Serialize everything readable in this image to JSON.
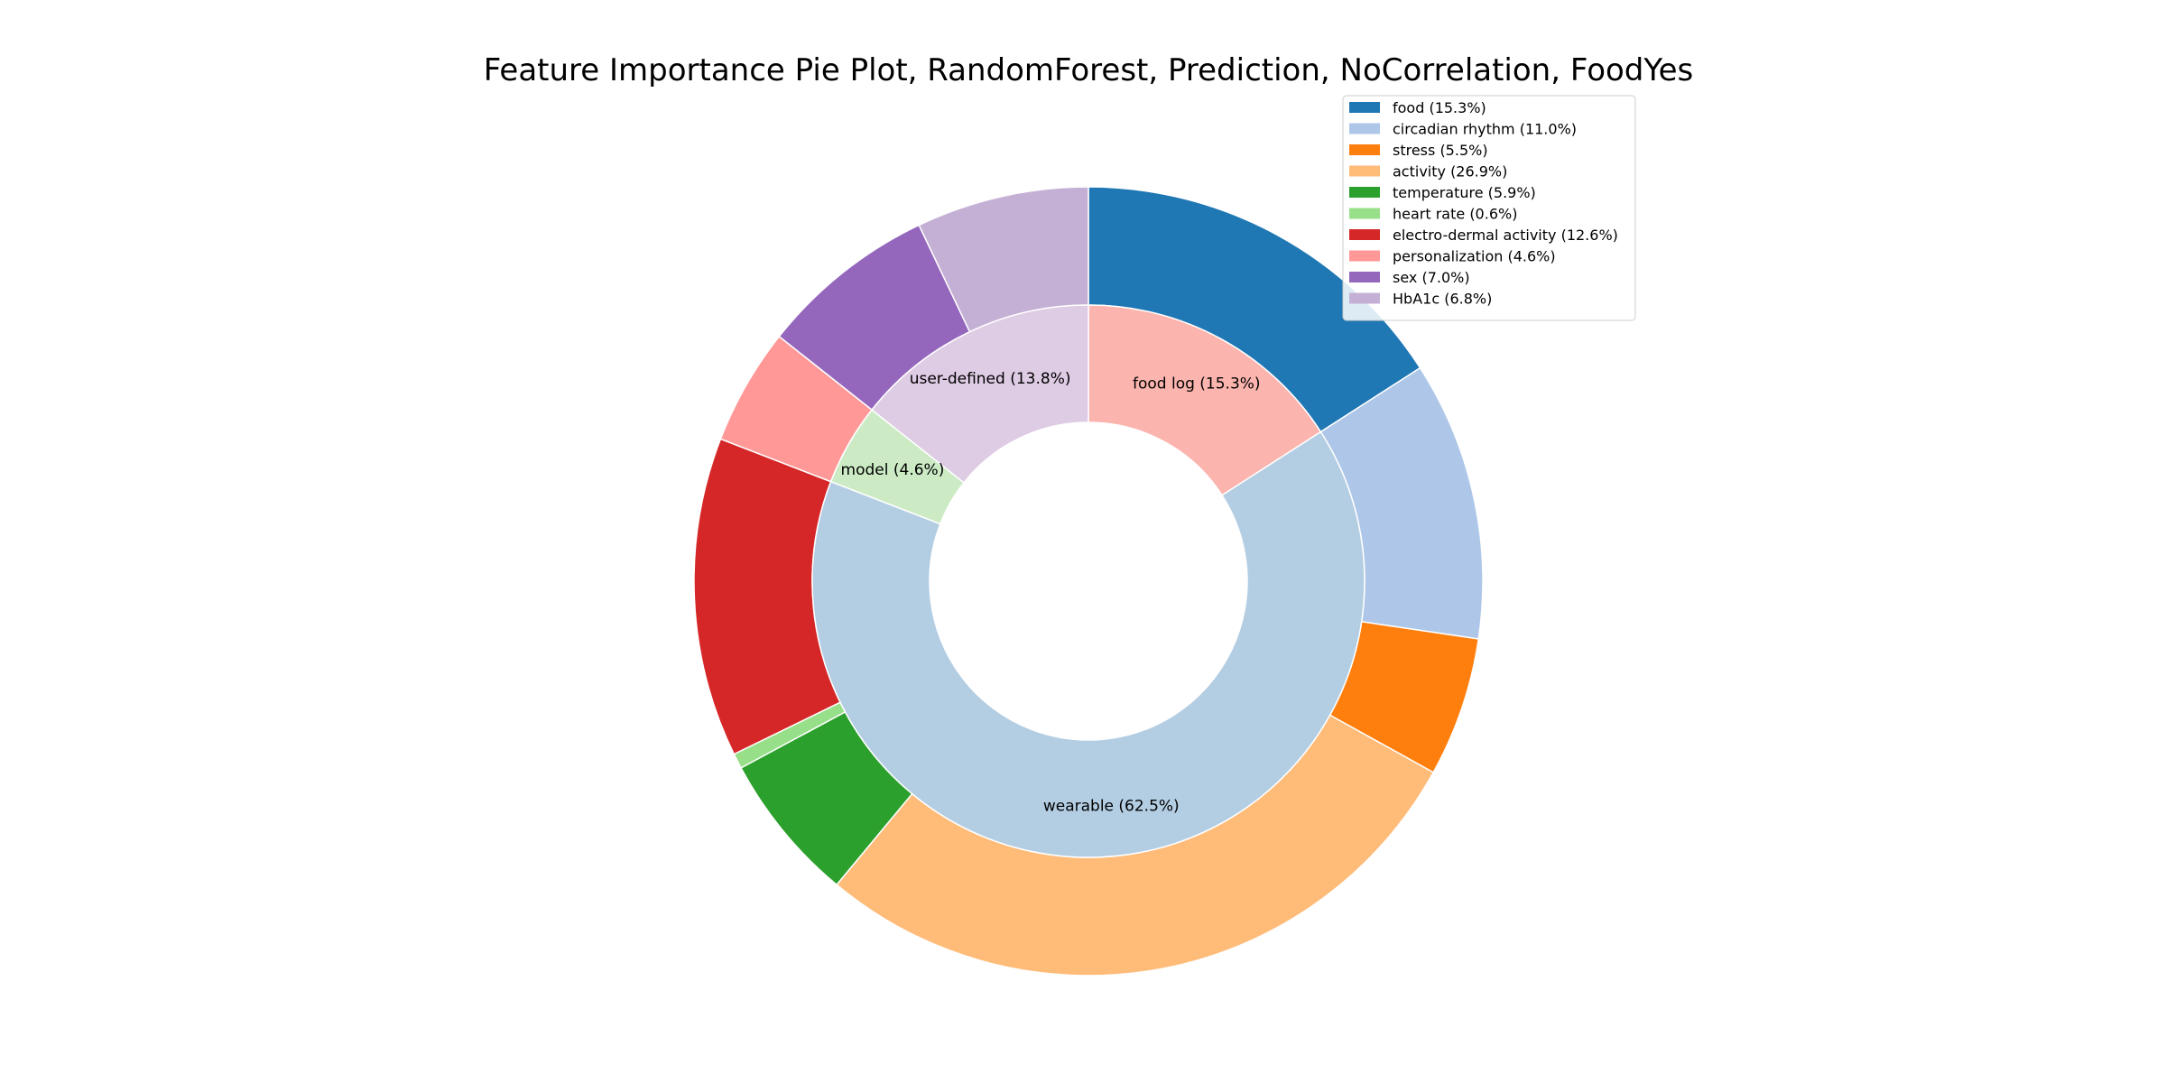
{
  "chart_data": {
    "type": "pie",
    "title": "Feature Importance Pie Plot, RandomForest, Prediction, NoCorrelation, FoodYes",
    "legend_position": "top-right",
    "outer_ring": {
      "categories": [
        "food",
        "circadian rhythm",
        "stress",
        "activity",
        "temperature",
        "heart rate",
        "electro-dermal activity",
        "personalization",
        "sex",
        "HbA1c"
      ],
      "values": [
        15.3,
        11.0,
        5.5,
        26.9,
        5.9,
        0.6,
        12.6,
        4.6,
        7.0,
        6.8
      ],
      "colors": [
        "#1f77b4",
        "#aec7e8",
        "#ff7f0e",
        "#ffbb78",
        "#2ca02c",
        "#98df8a",
        "#d62728",
        "#ff9896",
        "#9467bd",
        "#c5b0d5"
      ]
    },
    "inner_ring": {
      "categories": [
        "food log",
        "wearable",
        "model",
        "user-defined"
      ],
      "values": [
        15.3,
        62.5,
        4.6,
        13.8
      ],
      "colors": [
        "#fbb4ae",
        "#b3cde3",
        "#ccebc5",
        "#decbe4"
      ]
    },
    "legend_entries": [
      "food (15.3%)",
      "circadian rhythm (11.0%)",
      "stress (5.5%)",
      "activity (26.9%)",
      "temperature (5.9%)",
      "heart rate (0.6%)",
      "electro-dermal activity (12.6%)",
      "personalization (4.6%)",
      "sex (7.0%)",
      "HbA1c (6.8%)"
    ],
    "inner_labels": [
      "food log (15.3%)",
      "wearable (62.5%)",
      "model (4.6%)",
      "user-defined (13.8%)"
    ]
  }
}
